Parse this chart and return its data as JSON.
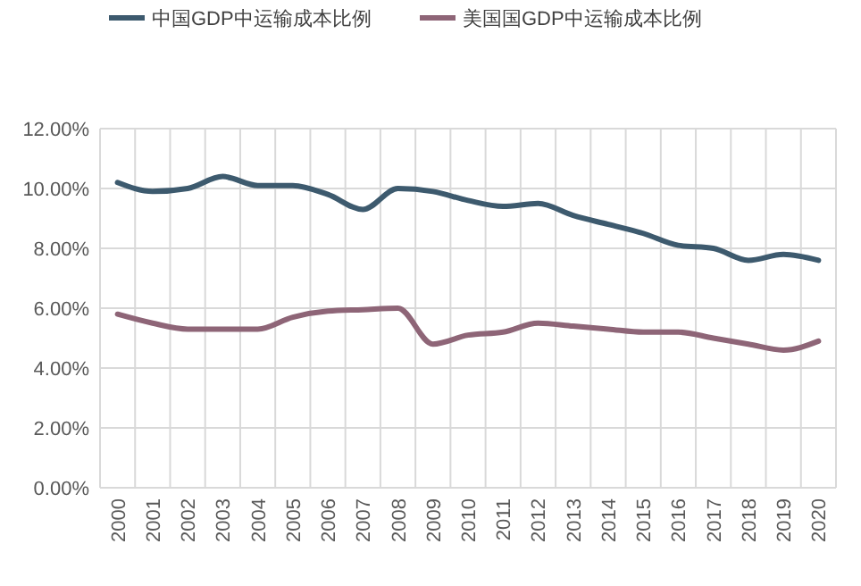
{
  "chart_data": {
    "type": "line",
    "categories": [
      "2000",
      "2001",
      "2002",
      "2003",
      "2004",
      "2005",
      "2006",
      "2007",
      "2008",
      "2009",
      "2010",
      "2011",
      "2012",
      "2013",
      "2014",
      "2015",
      "2016",
      "2017",
      "2018",
      "2019",
      "2020"
    ],
    "series": [
      {
        "name": "中国GDP中运输成本比例",
        "color": "#3d5a6e",
        "values": [
          10.2,
          9.9,
          10.0,
          10.4,
          10.1,
          10.1,
          9.8,
          9.3,
          10.0,
          9.9,
          9.6,
          9.4,
          9.5,
          9.1,
          8.8,
          8.5,
          8.1,
          8.0,
          7.6,
          7.8,
          7.6
        ]
      },
      {
        "name": "美国国GDP中运输成本比例",
        "color": "#8e6577",
        "values": [
          5.8,
          5.5,
          5.3,
          5.3,
          5.3,
          5.7,
          5.9,
          5.95,
          6.0,
          4.8,
          5.1,
          5.2,
          5.5,
          5.4,
          5.3,
          5.2,
          5.2,
          5.0,
          4.8,
          4.6,
          4.9
        ]
      }
    ],
    "ylim": [
      0,
      12
    ],
    "yticks": [
      {
        "value": 0,
        "label": "0.00%"
      },
      {
        "value": 2,
        "label": "2.00%"
      },
      {
        "value": 4,
        "label": "4.00%"
      },
      {
        "value": 6,
        "label": "6.00%"
      },
      {
        "value": 8,
        "label": "8.00%"
      },
      {
        "value": 10,
        "label": "10.00%"
      },
      {
        "value": 12,
        "label": "12.00%"
      }
    ],
    "grid": true,
    "legend": "top",
    "marker": "none",
    "line_style": "solid"
  }
}
